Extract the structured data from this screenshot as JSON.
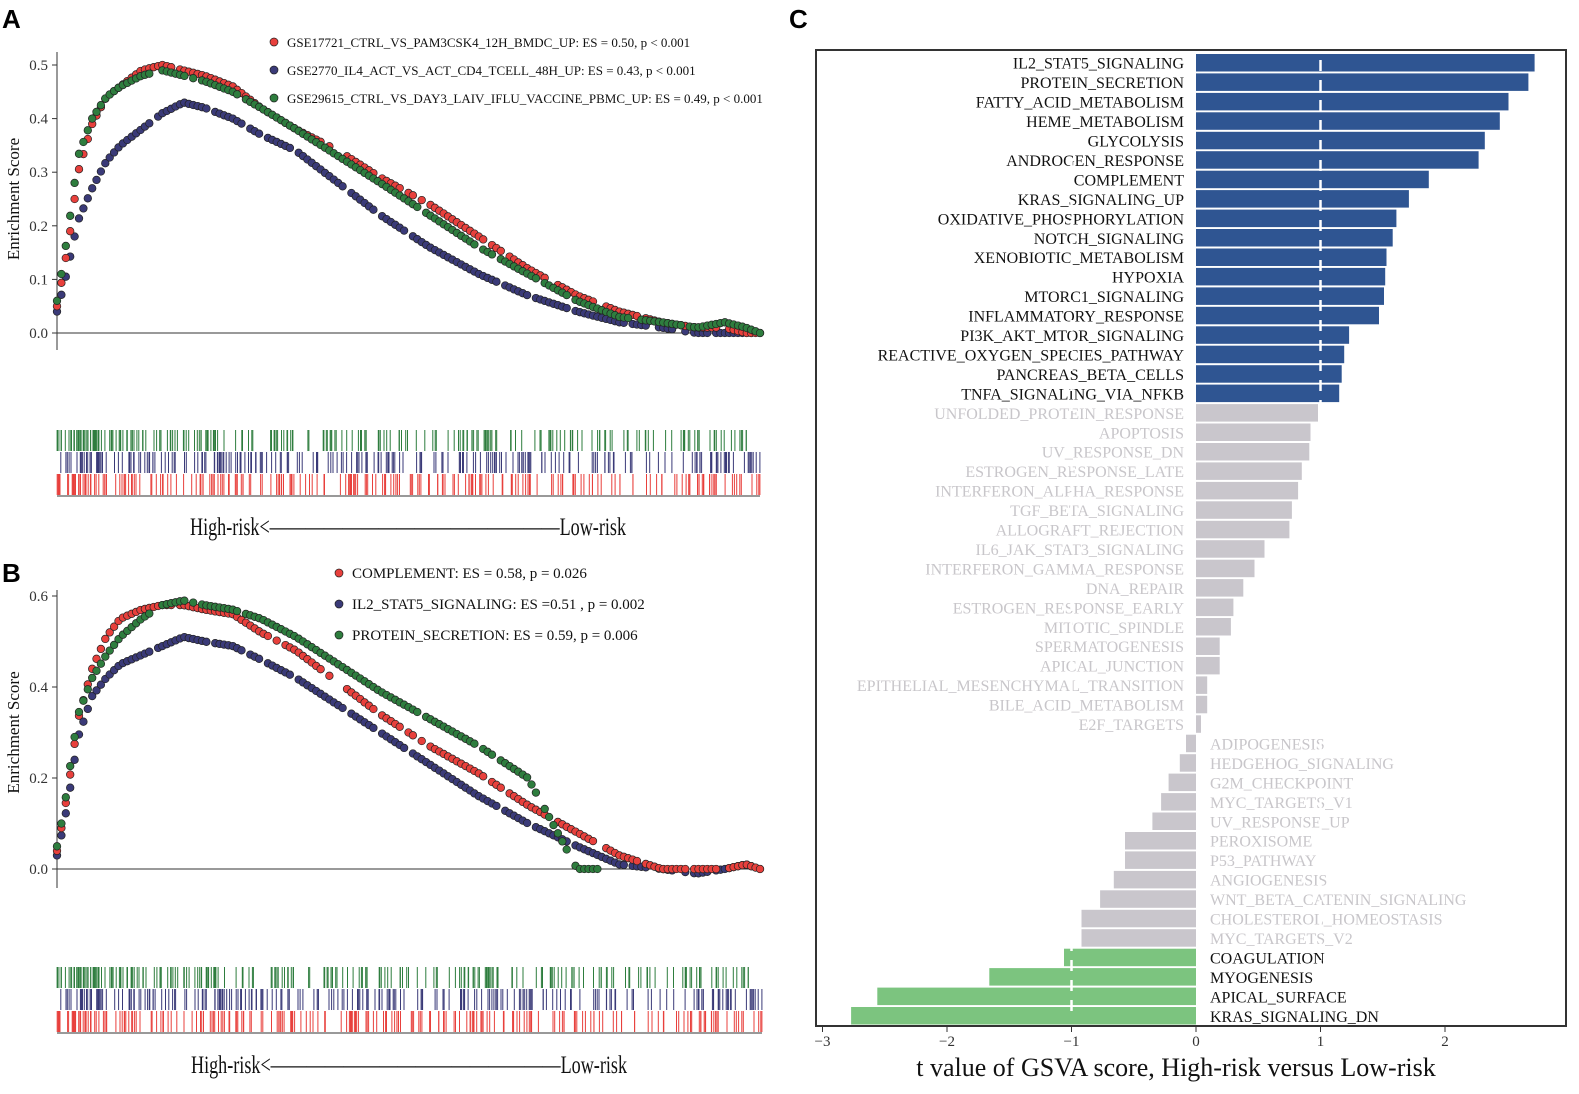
{
  "panel_labels": {
    "a": "A",
    "b": "B",
    "c": "C"
  },
  "colors": {
    "red": "#e8403c",
    "navy": "#3a3a78",
    "green": "#2e7d3e",
    "bar_up": "#2f5592",
    "bar_ns": "#c9c6cc",
    "bar_down": "#7cc47f",
    "label_ns": "#c8c6ca",
    "dashed": "#ffffff"
  },
  "chart_data": [
    {
      "id": "A",
      "type": "line",
      "ylabel": "Enrichment Score",
      "yticks": [
        "0.0",
        "0.1",
        "0.2",
        "0.3",
        "0.4",
        "0.5"
      ],
      "ylim": [
        0,
        0.5
      ],
      "xaxis_caption": "High-risk<————————————————Low-risk",
      "x": [
        0,
        0.01,
        0.02,
        0.03,
        0.05,
        0.07,
        0.09,
        0.12,
        0.15,
        0.18,
        0.21,
        0.25,
        0.29,
        0.34,
        0.4,
        0.46,
        0.53,
        0.6,
        0.67,
        0.74,
        0.8,
        0.86,
        0.91,
        0.95,
        0.98,
        1.0
      ],
      "series": [
        {
          "name": "GSE17721_CTRL_VS_PAM3CSK4_12H_BMDC_UP",
          "color_key": "red",
          "legend": "GSE17721_CTRL_VS_PAM3CSK4_12H_BMDC_UP: ES = 0.50, p < 0.001",
          "values": [
            0.05,
            0.12,
            0.2,
            0.3,
            0.39,
            0.44,
            0.46,
            0.49,
            0.5,
            0.49,
            0.48,
            0.46,
            0.42,
            0.38,
            0.34,
            0.29,
            0.24,
            0.18,
            0.12,
            0.07,
            0.04,
            0.02,
            0.01,
            0.01,
            0.0,
            0.0
          ]
        },
        {
          "name": "GSE2770_IL4_ACT_VS_ACT_CD4_TCELL_48H_UP",
          "color_key": "navy",
          "legend": "GSE2770_IL4_ACT_VS_ACT_CD4_TCELL_48H_UP: ES = 0.43, p < 0.001",
          "values": [
            0.04,
            0.09,
            0.15,
            0.21,
            0.27,
            0.32,
            0.35,
            0.38,
            0.41,
            0.43,
            0.42,
            0.4,
            0.37,
            0.34,
            0.28,
            0.22,
            0.16,
            0.11,
            0.07,
            0.04,
            0.02,
            0.01,
            0.0,
            0.0,
            0.0,
            0.0
          ]
        },
        {
          "name": "GSE29615_CTRL_VS_DAY3_LAIV_IFLU_VACCINE_PBMC_UP",
          "color_key": "green",
          "legend": "GSE29615_CTRL_VS_DAY3_LAIV_IFLU_VACCINE_PBMC_UP: ES = 0.49, p < 0.001",
          "values": [
            0.06,
            0.14,
            0.23,
            0.33,
            0.4,
            0.44,
            0.46,
            0.48,
            0.49,
            0.48,
            0.47,
            0.45,
            0.42,
            0.38,
            0.33,
            0.28,
            0.22,
            0.16,
            0.11,
            0.06,
            0.03,
            0.02,
            0.01,
            0.02,
            0.01,
            0.0
          ]
        }
      ]
    },
    {
      "id": "B",
      "type": "line",
      "ylabel": "Enrichment Score",
      "yticks": [
        "0.0",
        "0.2",
        "0.4",
        "0.6"
      ],
      "ylim": [
        0,
        0.6
      ],
      "xaxis_caption": "High-risk<————————————————Low-risk",
      "x": [
        0,
        0.01,
        0.02,
        0.03,
        0.05,
        0.07,
        0.09,
        0.12,
        0.15,
        0.18,
        0.21,
        0.25,
        0.29,
        0.34,
        0.4,
        0.46,
        0.53,
        0.6,
        0.67,
        0.74,
        0.8,
        0.86,
        0.91,
        0.95,
        0.98,
        1.0
      ],
      "series": [
        {
          "name": "COMPLEMENT",
          "color_key": "red",
          "legend": "COMPLEMENT: ES = 0.58, p = 0.026",
          "values": [
            0.04,
            0.12,
            0.22,
            0.33,
            0.44,
            0.51,
            0.55,
            0.57,
            0.58,
            0.58,
            0.57,
            0.56,
            0.52,
            0.48,
            0.41,
            0.34,
            0.27,
            0.21,
            0.14,
            0.08,
            0.03,
            0.0,
            0.0,
            0.0,
            0.01,
            0.0
          ]
        },
        {
          "name": "IL2_STAT5_SIGNALING",
          "color_key": "navy",
          "legend": "IL2_STAT5_SIGNALING: ES =0.51 , p = 0.002",
          "values": [
            0.03,
            0.1,
            0.19,
            0.29,
            0.38,
            0.42,
            0.45,
            0.47,
            0.49,
            0.51,
            0.5,
            0.49,
            0.46,
            0.42,
            0.36,
            0.3,
            0.23,
            0.16,
            0.1,
            0.05,
            0.01,
            0.0,
            -0.01,
            0.0,
            0.01,
            0.0
          ]
        },
        {
          "name": "PROTEIN_SECRETION",
          "color_key": "green",
          "legend": "PROTEIN_SECRETION: ES = 0.59, p = 0.006",
          "values": [
            0.05,
            0.13,
            0.24,
            0.34,
            0.42,
            0.47,
            0.51,
            0.55,
            0.58,
            0.59,
            0.58,
            0.57,
            0.55,
            0.51,
            0.45,
            0.39,
            0.33,
            0.27,
            0.2,
            0.0,
            0.0,
            0.0,
            0.0,
            0.0,
            0.0,
            0.0
          ]
        }
      ]
    },
    {
      "id": "C",
      "type": "bar",
      "orientation": "horizontal",
      "xlabel": "t value of GSVA score, High-risk  versus Low-risk",
      "xticks": [
        -3,
        -2,
        -1,
        0,
        1,
        2
      ],
      "xlim": [
        -3.05,
        2.95
      ],
      "threshold": [
        -1,
        1
      ],
      "categories": [
        "IL2_STAT5_SIGNALING",
        "PROTEIN_SECRETION",
        "FATTY_ACID_METABOLISM",
        "HEME_METABOLISM",
        "GLYCOLYSIS",
        "ANDROGEN_RESPONSE",
        "COMPLEMENT",
        "KRAS_SIGNALING_UP",
        "OXIDATIVE_PHOSPHORYLATION",
        "NOTCH_SIGNALING",
        "XENOBIOTIC_METABOLISM",
        "HYPOXIA",
        "MTORC1_SIGNALING",
        "INFLAMMATORY_RESPONSE",
        "PI3K_AKT_MTOR_SIGNALING",
        "REACTIVE_OXYGEN_SPECIES_PATHWAY",
        "PANCREAS_BETA_CELLS",
        "TNFA_SIGNALING_VIA_NFKB",
        "UNFOLDED_PROTEIN_RESPONSE",
        "APOPTOSIS",
        "UV_RESPONSE_DN",
        "ESTROGEN_RESPONSE_LATE",
        "INTERFERON_ALPHA_RESPONSE",
        "TGF_BETA_SIGNALING",
        "ALLOGRAFT_REJECTION",
        "IL6_JAK_STAT3_SIGNALING",
        "INTERFERON_GAMMA_RESPONSE",
        "DNA_REPAIR",
        "ESTROGEN_RESPONSE_EARLY",
        "MITOTIC_SPINDLE",
        "SPERMATOGENESIS",
        "APICAL_JUNCTION",
        "EPITHELIAL_MESENCHYMAL_TRANSITION",
        "BILE_ACID_METABOLISM",
        "E2F_TARGETS",
        "ADIPOGENESIS",
        "HEDGEHOG_SIGNALING",
        "G2M_CHECKPOINT",
        "MYC_TARGETS_V1",
        "UV_RESPONSE_UP",
        "PEROXISOME",
        "P53_PATHWAY",
        "ANGIOGENESIS",
        "WNT_BETA_CATENIN_SIGNALING",
        "CHOLESTEROL_HOMEOSTASIS",
        "MYC_TARGETS_V2",
        "COAGULATION",
        "MYOGENESIS",
        "APICAL_SURFACE",
        "KRAS_SIGNALING_DN"
      ],
      "values": [
        2.72,
        2.67,
        2.51,
        2.44,
        2.32,
        2.27,
        1.87,
        1.71,
        1.61,
        1.58,
        1.53,
        1.52,
        1.51,
        1.47,
        1.23,
        1.19,
        1.17,
        1.15,
        0.98,
        0.92,
        0.91,
        0.85,
        0.82,
        0.77,
        0.75,
        0.55,
        0.47,
        0.38,
        0.3,
        0.28,
        0.19,
        0.19,
        0.09,
        0.09,
        0.04,
        -0.08,
        -0.13,
        -0.22,
        -0.28,
        -0.35,
        -0.57,
        -0.57,
        -0.66,
        -0.77,
        -0.92,
        -0.92,
        -1.06,
        -1.66,
        -2.56,
        -2.77
      ]
    }
  ]
}
